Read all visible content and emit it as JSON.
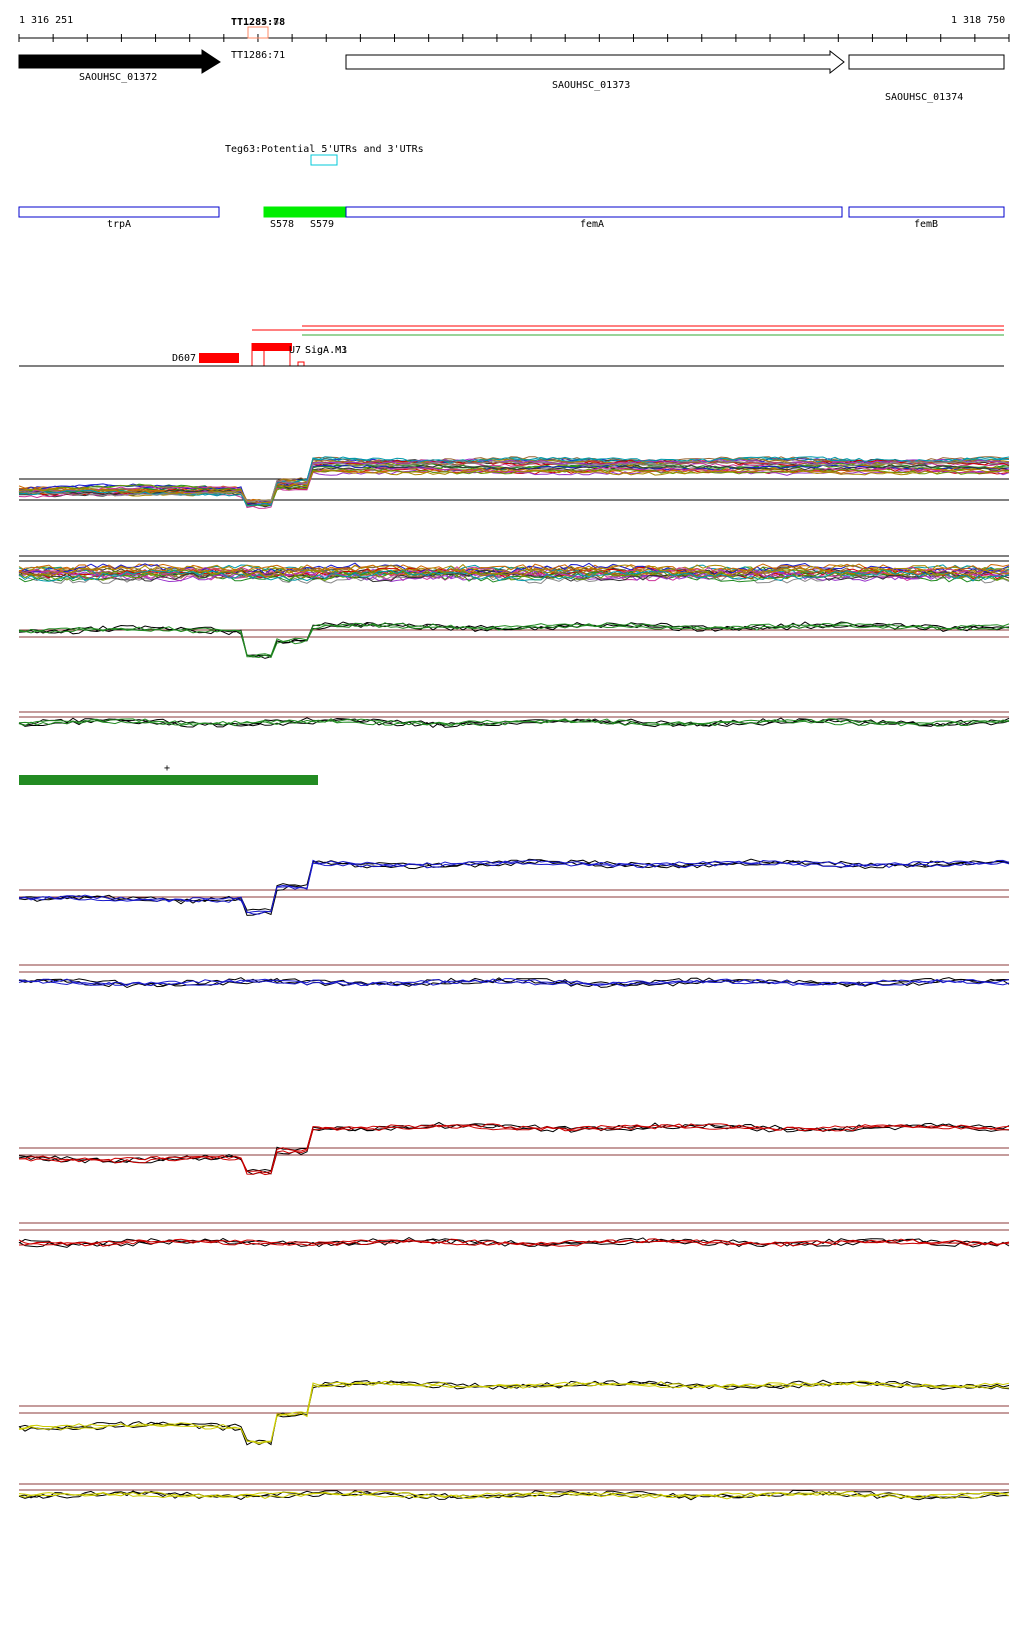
{
  "ruler": {
    "start_label": "1 316 251",
    "end_label": "1 318 750",
    "terminator_label": "TT1285:78",
    "terminator_label_overlap": "TT1287:8"
  },
  "genes": [
    {
      "label": "SAOUHSC_01372",
      "strand": "+",
      "fill": "#000000"
    },
    {
      "label": "SAOUHSC_01373",
      "strand": "+",
      "fill": "#ffffff"
    },
    {
      "label": "SAOUHSC_01374",
      "strand": "+",
      "fill": "#ffffff"
    }
  ],
  "terminator_below": "TT1286:71",
  "utr_track": {
    "label": "Teg63:Potential 5'UTRs and 3'UTRs",
    "color": "#00c8d8"
  },
  "annotation_track": {
    "boxes": [
      {
        "label": "trpA",
        "color": "#0000cc"
      },
      {
        "label": "femA",
        "color": "#0000cc"
      },
      {
        "label": "femB",
        "color": "#0000cc"
      }
    ],
    "srna": {
      "labels": [
        "S578",
        "S579"
      ],
      "color": "#00ee00"
    }
  },
  "tss_track": {
    "labels": [
      "D607",
      "U7",
      "SigA.M3",
      "SigA.M1"
    ],
    "colors": {
      "red": "#ff0000",
      "green": "#33aa33"
    }
  },
  "expression_panels": {
    "colors": {
      "black": "#000000",
      "green": "#228b22",
      "blue": "#1a1acc",
      "red": "#cc0000",
      "yellow": "#cccc00",
      "threshold": "#8b3a3a"
    },
    "plus_marker": "+"
  },
  "chart_data": {
    "type": "line",
    "title": "",
    "x_start": 1316251,
    "x_end": 1318750,
    "xlabel": "",
    "ylabel": "",
    "note": "Expression tiling-array tracks; values are relative signal levels (0 = low, 1 = high) across the genomic window.",
    "panels": [
      {
        "name": "",
        "levels": {
          "before_femA": 0.25,
          "dip_S578": 0.05,
          "femA": 0.75
        }
      },
      {
        "name": "",
        "levels": {
          "trpA": 0.5,
          "dip_S578": 0.15,
          "femA": 0.55
        }
      },
      {
        "name": "",
        "levels": {
          "trpA": 0.55,
          "femA": 0.55
        }
      },
      {
        "name": "",
        "levels": {
          "trpA": 0.3,
          "dip_S578": 0.1,
          "femA": 0.8
        }
      },
      {
        "name": "",
        "levels": {
          "trpA": 0.65,
          "femA": 0.55
        }
      },
      {
        "name": "",
        "levels": {
          "trpA": 0.3,
          "dip_S578": 0.1,
          "femA": 0.75
        }
      },
      {
        "name": "",
        "levels": {
          "trpA": 0.5,
          "femA": 0.45
        }
      },
      {
        "name": "",
        "levels": {
          "trpA": 0.25,
          "dip_S578": 0.05,
          "femA": 0.8
        }
      },
      {
        "name": "",
        "levels": {
          "trpA": 0.35,
          "femA": 0.5
        }
      }
    ]
  }
}
